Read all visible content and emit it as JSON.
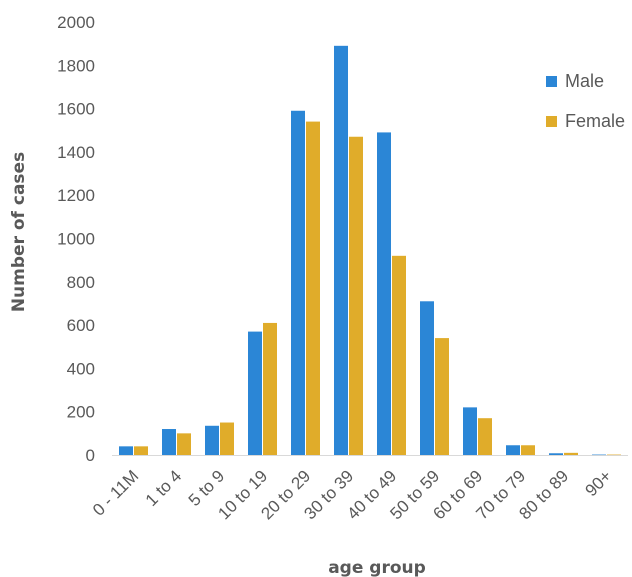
{
  "chart_data": {
    "type": "bar",
    "title": "",
    "xlabel": "age group",
    "ylabel": "Number of cases",
    "ylim": [
      0,
      2000
    ],
    "yticks": [
      0,
      200,
      400,
      600,
      800,
      1000,
      1200,
      1400,
      1600,
      1800,
      2000
    ],
    "grid": false,
    "legend_position": "top-right",
    "categories": [
      "0 - 11M",
      "1 to 4",
      "5 to 9",
      "10 to 19",
      "20 to 29",
      "30 to 39",
      "40 to 49",
      "50 to 59",
      "60 to 69",
      "70 to 79",
      "80 to 89",
      "90+"
    ],
    "series": [
      {
        "name": "Male",
        "color": "#2b86d6",
        "values": [
          40,
          120,
          135,
          570,
          1590,
          1890,
          1490,
          710,
          220,
          45,
          8,
          2
        ]
      },
      {
        "name": "Female",
        "color": "#e0ac2a",
        "values": [
          40,
          100,
          150,
          610,
          1540,
          1470,
          920,
          540,
          170,
          45,
          10,
          2
        ]
      }
    ]
  }
}
